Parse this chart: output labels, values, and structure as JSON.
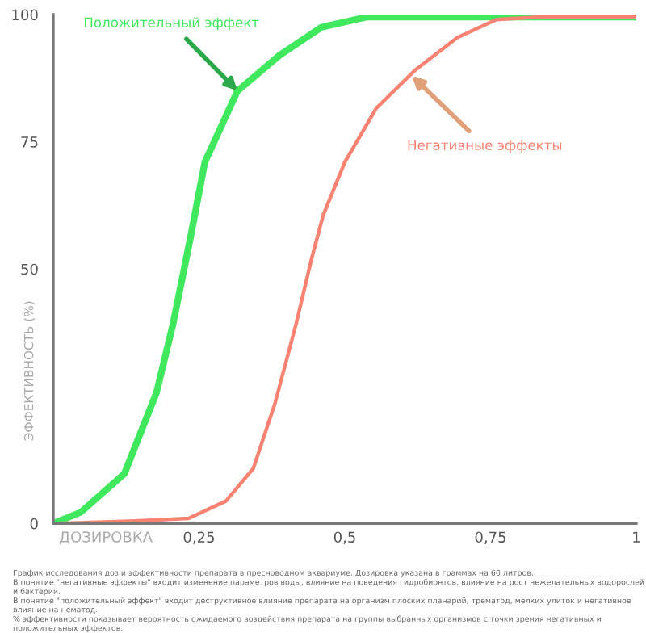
{
  "chart_data": {
    "type": "line",
    "xlabel": "ДОЗИРОВКА",
    "ylabel": "ЭФФЕКТИВНОСТЬ (%)",
    "series": [
      {
        "color": "#3fe85c",
        "x": [
          0,
          0.047,
          0.122,
          0.177,
          0.205,
          0.235,
          0.26,
          0.316,
          0.388,
          0.46,
          0.537,
          0.6,
          0.8,
          1
        ],
        "values": [
          0,
          2.2,
          9.8,
          25.7,
          39,
          56,
          71,
          85,
          92,
          97.5,
          99.5,
          99.5,
          99.5,
          99.5
        ]
      },
      {
        "color": "#f98272",
        "x": [
          0,
          0.14,
          0.232,
          0.296,
          0.343,
          0.38,
          0.416,
          0.443,
          0.463,
          0.5,
          0.554,
          0.62,
          0.693,
          0.76,
          0.83,
          1
        ],
        "values": [
          0,
          0.5,
          1,
          4.4,
          10.8,
          23.5,
          39,
          52,
          60.6,
          71,
          81.6,
          89,
          95.5,
          99,
          99.5,
          99.5
        ]
      }
    ],
    "xlim": [
      0,
      1
    ],
    "ylim": [
      0,
      100
    ],
    "xticks": [
      {
        "value": 0.25,
        "label": "0,25"
      },
      {
        "value": 0.5,
        "label": "0,5"
      },
      {
        "value": 0.75,
        "label": "0,75"
      },
      1
    ],
    "yticks": [
      0,
      50,
      75,
      100
    ],
    "grid": false,
    "legend": false,
    "marker": "none",
    "line_style": "solid",
    "annotations": [
      {
        "text": "Положительный эффект",
        "x": 0.316,
        "y": 85
      },
      {
        "text": "Негативные эффекты",
        "x": 0.615,
        "y": 88
      },
      "График исследования доз и эффективности препарата в пресноводном аквариуме. Дозировка указана в граммах на 60 литров.",
      "В понятие \"негативные эффекты\" входит изменение параметров воды, влияние на поведения гидробионтов, влияние на рост нежелательных водорослей и бактерий.",
      "В понятие \"положительный эффект\" входит деструктивное влияние препарата на организм плоских планарий, трематод, мелких улиток и негативное влияние на нематод.",
      "% эффективности показывает вероятность ожидаемого воздействия препарата на группы выбранных организмов с точки зрения негативных и положительных эффектов."
    ]
  }
}
